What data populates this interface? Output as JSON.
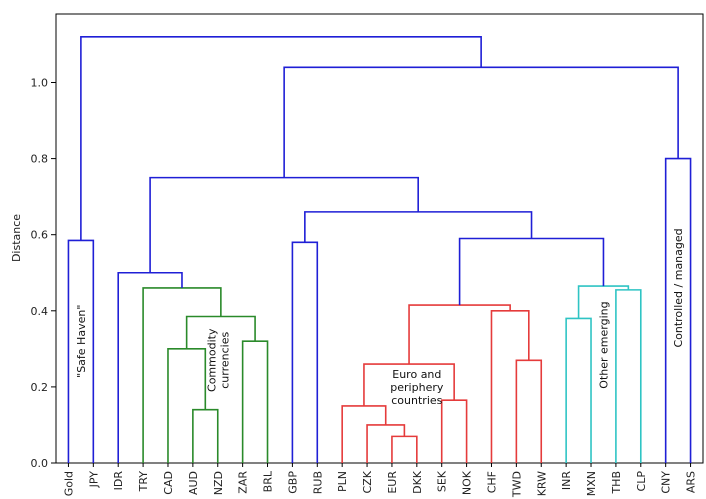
{
  "chart_data": {
    "type": "dendrogram",
    "ylabel": "Distance",
    "ylim": [
      0,
      1.18
    ],
    "yticks": [
      "0.0",
      "0.2",
      "0.4",
      "0.6",
      "0.8",
      "1.0"
    ],
    "ytick_values": [
      0.0,
      0.2,
      0.4,
      0.6,
      0.8,
      1.0
    ],
    "leaves": [
      "Gold",
      "JPY",
      "IDR",
      "TRY",
      "CAD",
      "AUD",
      "NZD",
      "ZAR",
      "BRL",
      "GBP",
      "RUB",
      "PLN",
      "CZK",
      "EUR",
      "DKK",
      "SEK",
      "NOK",
      "CHF",
      "TWD",
      "KRW",
      "INR",
      "MXN",
      "THB",
      "CLP",
      "CNY",
      "ARS"
    ],
    "colors": {
      "blue": "#1f1fd6",
      "green": "#2a8a2a",
      "red": "#e53b3b",
      "cyan": "#2ec4c4"
    },
    "merges": [
      {
        "a": [
          0
        ],
        "b": [
          1
        ],
        "height": 0.585,
        "color": "blue"
      },
      {
        "a": [
          5
        ],
        "b": [
          6
        ],
        "height": 0.14,
        "color": "green"
      },
      {
        "a": [
          4
        ],
        "b": [
          5,
          6
        ],
        "height": 0.3,
        "color": "green"
      },
      {
        "a": [
          7
        ],
        "b": [
          8
        ],
        "height": 0.32,
        "color": "green"
      },
      {
        "a": [
          4,
          5,
          6
        ],
        "b": [
          7,
          8
        ],
        "height": 0.385,
        "color": "green"
      },
      {
        "a": [
          3
        ],
        "b": [
          4,
          5,
          6,
          7,
          8
        ],
        "height": 0.46,
        "color": "green"
      },
      {
        "a": [
          2
        ],
        "b": [
          3,
          4,
          5,
          6,
          7,
          8
        ],
        "height": 0.5,
        "color": "blue"
      },
      {
        "a": [
          9
        ],
        "b": [
          10
        ],
        "height": 0.58,
        "color": "blue"
      },
      {
        "a": [
          13
        ],
        "b": [
          14
        ],
        "height": 0.07,
        "color": "red"
      },
      {
        "a": [
          12
        ],
        "b": [
          13,
          14
        ],
        "height": 0.1,
        "color": "red"
      },
      {
        "a": [
          11
        ],
        "b": [
          12,
          13,
          14
        ],
        "height": 0.15,
        "color": "red"
      },
      {
        "a": [
          15
        ],
        "b": [
          16
        ],
        "height": 0.165,
        "color": "red"
      },
      {
        "a": [
          11,
          12,
          13,
          14
        ],
        "b": [
          15,
          16
        ],
        "height": 0.26,
        "color": "red"
      },
      {
        "a": [
          18
        ],
        "b": [
          19
        ],
        "height": 0.27,
        "color": "red"
      },
      {
        "a": [
          17
        ],
        "b": [
          18,
          19
        ],
        "height": 0.4,
        "color": "red"
      },
      {
        "a": [
          11,
          12,
          13,
          14,
          15,
          16
        ],
        "b": [
          17,
          18,
          19
        ],
        "height": 0.415,
        "color": "red"
      },
      {
        "a": [
          20
        ],
        "b": [
          21
        ],
        "height": 0.38,
        "color": "cyan"
      },
      {
        "a": [
          22
        ],
        "b": [
          23
        ],
        "height": 0.455,
        "color": "cyan"
      },
      {
        "a": [
          20,
          21
        ],
        "b": [
          22,
          23
        ],
        "height": 0.465,
        "color": "cyan"
      },
      {
        "a": [
          11,
          12,
          13,
          14,
          15,
          16,
          17,
          18,
          19
        ],
        "b": [
          20,
          21,
          22,
          23
        ],
        "height": 0.59,
        "color": "blue"
      },
      {
        "a": [
          9,
          10
        ],
        "b": [
          11,
          12,
          13,
          14,
          15,
          16,
          17,
          18,
          19,
          20,
          21,
          22,
          23
        ],
        "height": 0.66,
        "color": "blue"
      },
      {
        "a": [
          2,
          3,
          4,
          5,
          6,
          7,
          8
        ],
        "b": [
          9,
          10,
          11,
          12,
          13,
          14,
          15,
          16,
          17,
          18,
          19,
          20,
          21,
          22,
          23
        ],
        "height": 0.75,
        "color": "blue"
      },
      {
        "a": [
          24
        ],
        "b": [
          25
        ],
        "height": 0.8,
        "color": "blue"
      },
      {
        "a": [
          2,
          3,
          4,
          5,
          6,
          7,
          8,
          9,
          10,
          11,
          12,
          13,
          14,
          15,
          16,
          17,
          18,
          19,
          20,
          21,
          22,
          23
        ],
        "b": [
          24,
          25
        ],
        "height": 1.04,
        "color": "blue"
      },
      {
        "a": [
          0,
          1
        ],
        "b": [
          2,
          3,
          4,
          5,
          6,
          7,
          8,
          9,
          10,
          11,
          12,
          13,
          14,
          15,
          16,
          17,
          18,
          19,
          20,
          21,
          22,
          23,
          24,
          25
        ],
        "height": 1.12,
        "color": "blue"
      }
    ],
    "annotations": [
      {
        "lines": [
          "\"Safe Haven\""
        ],
        "rotate": true,
        "leaf_pos": 0.5,
        "y": 0.32
      },
      {
        "lines": [
          "Commodity",
          "currencies"
        ],
        "rotate": true,
        "leaf_pos": 6.0,
        "y": 0.27
      },
      {
        "lines": [
          "Euro and",
          "periphery",
          "countries"
        ],
        "rotate": false,
        "leaf_pos": 14.0,
        "y": 0.2
      },
      {
        "lines": [
          "Other emerging"
        ],
        "rotate": true,
        "leaf_pos": 21.5,
        "y": 0.31
      },
      {
        "lines": [
          "Controlled / managed"
        ],
        "rotate": true,
        "leaf_pos": 24.5,
        "y": 0.46
      }
    ]
  }
}
